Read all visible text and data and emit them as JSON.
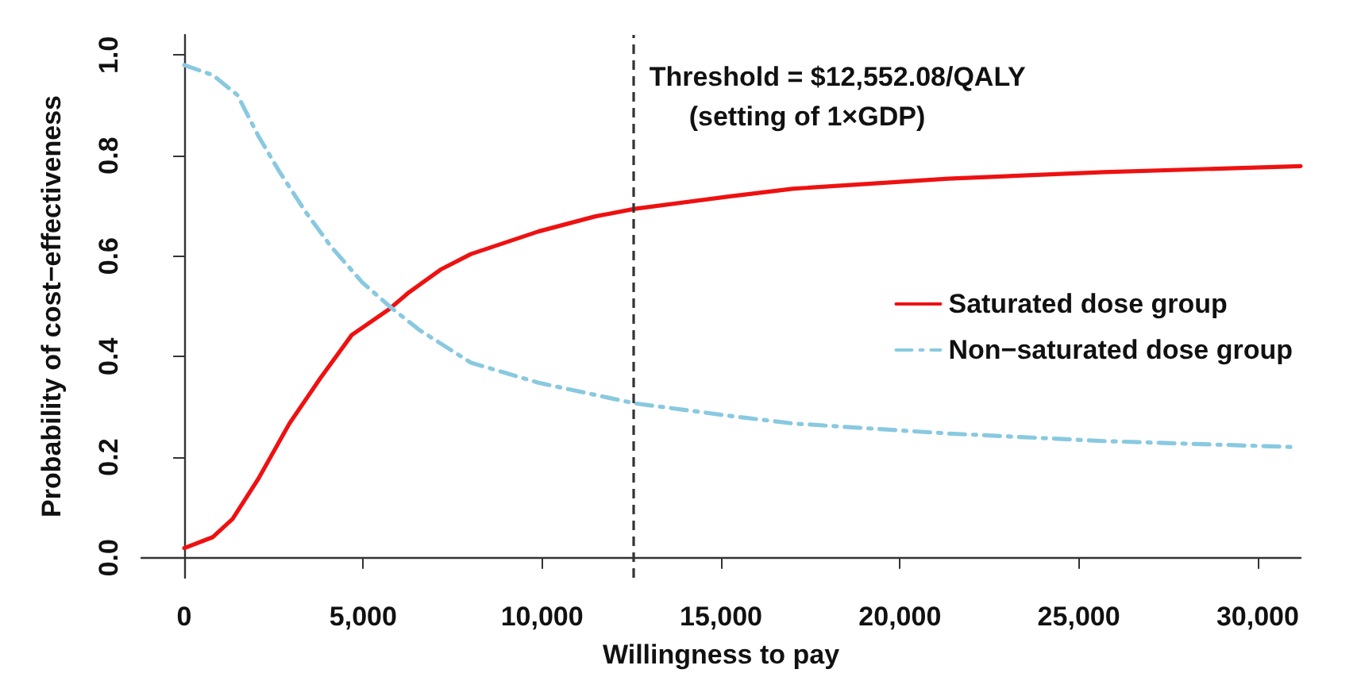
{
  "chart_data": {
    "type": "line",
    "xlabel": "Willingness to pay",
    "ylabel": "Probability of cost−effectiveness",
    "xlim": [
      -1200,
      31200
    ],
    "xticks": [
      0,
      {
        "value": 5000,
        "label": "5,000"
      },
      {
        "value": 10000,
        "label": "10,000"
      },
      {
        "value": 15000,
        "label": "15,000"
      },
      {
        "value": 20000,
        "label": "20,000"
      },
      {
        "value": 25000,
        "label": "25,000"
      },
      {
        "value": 30000,
        "label": "30,000"
      }
    ],
    "ylim": [
      -0.04,
      1.04
    ],
    "yticks": [
      {
        "value": 0,
        "label": "0.0"
      },
      0.2,
      0.4,
      0.6,
      0.8,
      {
        "value": 1,
        "label": "1.0"
      }
    ],
    "grid": false,
    "legend": "right",
    "marker": "none",
    "series": [
      {
        "name": "Saturated dose group",
        "color": "#ee1111",
        "line_style": "solid",
        "x": [
          0,
          800,
          1350,
          2070,
          2940,
          3810,
          4680,
          5700,
          6280,
          7160,
          8010,
          9900,
          11490,
          12590,
          15260,
          17000,
          21350,
          25700,
          31200
        ],
        "values": [
          0.019,
          0.041,
          0.077,
          0.157,
          0.267,
          0.358,
          0.443,
          0.493,
          0.528,
          0.573,
          0.604,
          0.649,
          0.679,
          0.694,
          0.719,
          0.734,
          0.754,
          0.767,
          0.779
        ]
      },
      {
        "name": "Non−saturated dose group",
        "color": "#89c9e0",
        "line_style": "dashed",
        "x": [
          0,
          800,
          1490,
          2070,
          2650,
          3380,
          4100,
          4970,
          5770,
          6570,
          8010,
          9900,
          12590,
          15260,
          17000,
          21350,
          25700,
          31060
        ],
        "values": [
          0.98,
          0.96,
          0.92,
          0.839,
          0.769,
          0.689,
          0.619,
          0.548,
          0.498,
          0.453,
          0.388,
          0.348,
          0.307,
          0.282,
          0.267,
          0.247,
          0.232,
          0.22
        ]
      }
    ],
    "ref_lines": [
      {
        "axis": "x",
        "value": 12552.08,
        "label": "Threshold = $12,552.08/QALY\n(setting of 1×GDP)",
        "color": "#333333",
        "line_style": "dashed"
      }
    ]
  }
}
